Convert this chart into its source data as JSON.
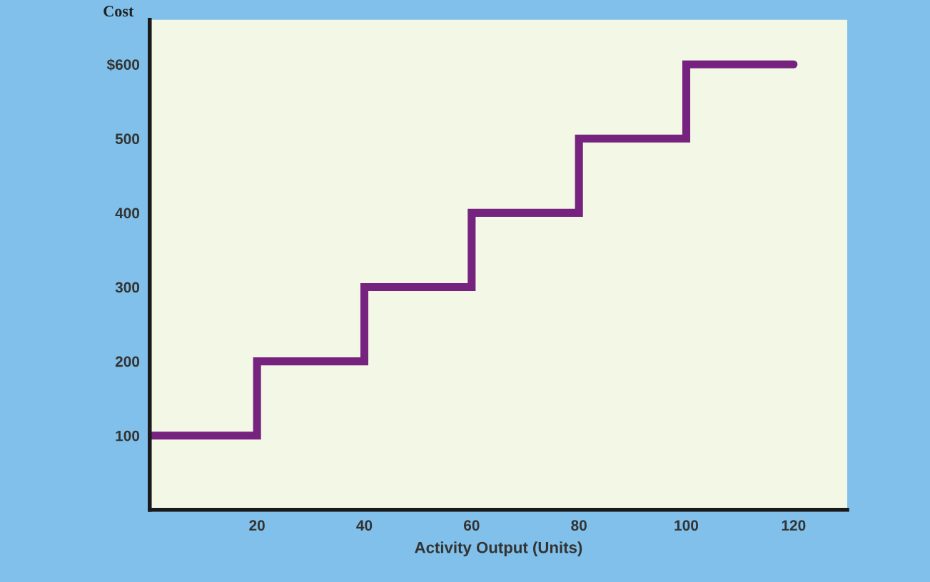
{
  "chart_data": {
    "type": "step",
    "ylabel": "Cost",
    "xlabel": "Activity Output (Units)",
    "x": [
      0,
      20,
      40,
      60,
      80,
      100,
      120
    ],
    "values": [
      100,
      200,
      300,
      400,
      500,
      600,
      600
    ],
    "color": "#76237f",
    "xlim": [
      0,
      130
    ],
    "xticks": [
      20,
      40,
      60,
      80,
      100,
      120
    ],
    "ylim": [
      0,
      660
    ],
    "yticks": [
      100,
      200,
      300,
      400,
      500,
      {
        "value": 600,
        "label": "$600"
      }
    ],
    "grid": false
  }
}
